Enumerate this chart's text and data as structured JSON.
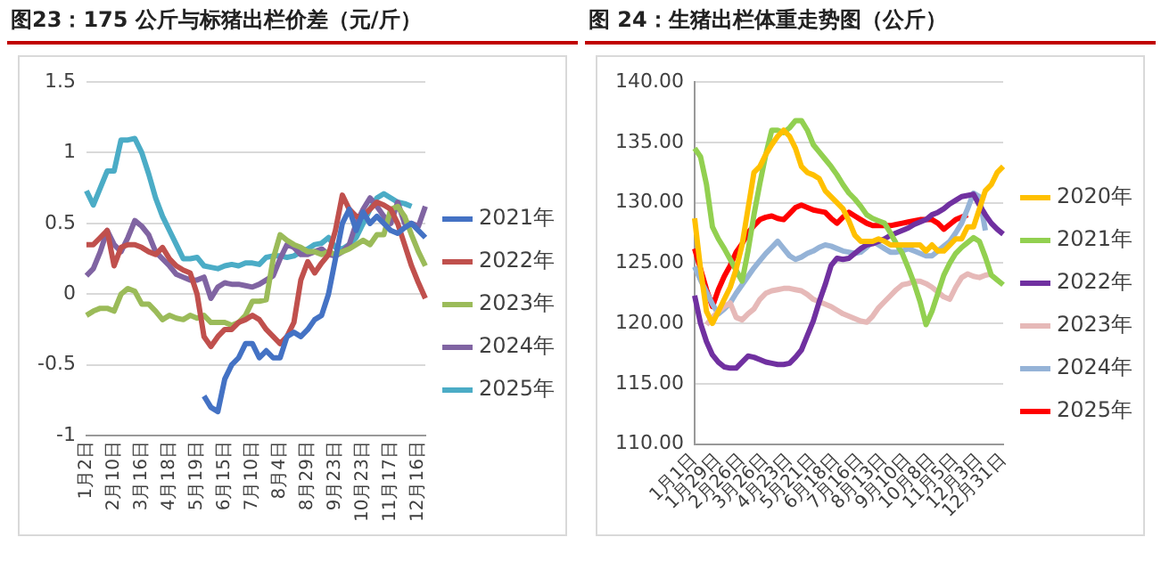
{
  "chart_data": [
    {
      "type": "line",
      "title": "图23：175 公斤与标猪出栏价差（元/斤）",
      "categories": [
        "1月2日",
        null,
        null,
        null,
        "2月10日",
        null,
        null,
        null,
        "3月16日",
        null,
        null,
        null,
        "4月18日",
        null,
        null,
        null,
        "5月19日",
        null,
        null,
        null,
        "6月15日",
        null,
        null,
        null,
        "7月10日",
        null,
        null,
        null,
        "8月4日",
        null,
        null,
        null,
        "8月29日",
        null,
        null,
        null,
        "9月23日",
        null,
        null,
        null,
        "10月23日",
        null,
        null,
        null,
        "11月17日",
        null,
        null,
        null,
        "12月16日",
        null
      ],
      "ylim": [
        -1,
        1.5
      ],
      "yticks": [
        1.5,
        1,
        0.5,
        0,
        -0.5,
        -1
      ],
      "grid": "y",
      "legend": "right",
      "marker": "none",
      "series": [
        {
          "name": "2021年",
          "color": "#4472c4",
          "values": [
            null,
            null,
            null,
            null,
            null,
            null,
            null,
            null,
            null,
            null,
            null,
            null,
            null,
            null,
            null,
            null,
            null,
            -0.72,
            -0.8,
            -0.83,
            -0.6,
            -0.5,
            -0.45,
            -0.35,
            -0.35,
            -0.45,
            -0.4,
            -0.45,
            -0.45,
            -0.3,
            -0.27,
            -0.3,
            -0.25,
            -0.18,
            -0.15,
            0.0,
            0.25,
            0.5,
            0.6,
            0.45,
            0.58,
            0.5,
            0.55,
            0.5,
            0.45,
            0.43,
            0.47,
            0.5,
            0.45,
            0.4
          ]
        },
        {
          "name": "2022年",
          "color": "#c0504d",
          "values": [
            0.35,
            0.35,
            0.4,
            0.45,
            0.2,
            0.33,
            0.35,
            0.35,
            0.33,
            0.3,
            0.28,
            0.33,
            0.25,
            0.2,
            0.17,
            0.15,
            0.0,
            -0.3,
            -0.37,
            -0.3,
            -0.25,
            -0.25,
            -0.2,
            -0.18,
            -0.15,
            -0.18,
            -0.25,
            -0.3,
            -0.35,
            -0.3,
            -0.2,
            0.1,
            0.23,
            0.15,
            0.22,
            0.28,
            0.45,
            0.7,
            0.6,
            0.55,
            0.55,
            0.6,
            0.65,
            0.63,
            0.6,
            0.5,
            0.35,
            0.2,
            0.08,
            -0.03
          ]
        },
        {
          "name": "2023年",
          "color": "#9bbb59",
          "values": [
            -0.15,
            -0.12,
            -0.1,
            -0.1,
            -0.12,
            0.0,
            0.04,
            0.02,
            -0.07,
            -0.07,
            -0.12,
            -0.18,
            -0.15,
            -0.17,
            -0.18,
            -0.15,
            -0.17,
            -0.15,
            -0.2,
            -0.2,
            -0.2,
            -0.22,
            -0.2,
            -0.15,
            -0.05,
            -0.05,
            -0.04,
            0.25,
            0.42,
            0.38,
            0.35,
            0.33,
            0.3,
            0.3,
            0.28,
            0.3,
            0.28,
            0.3,
            0.32,
            0.35,
            0.38,
            0.35,
            0.42,
            0.42,
            0.6,
            0.62,
            0.55,
            0.42,
            0.3,
            0.2
          ]
        },
        {
          "name": "2024年",
          "color": "#8064a2",
          "values": [
            0.13,
            0.18,
            0.3,
            0.45,
            0.35,
            0.3,
            0.4,
            0.52,
            0.48,
            0.42,
            0.3,
            0.25,
            0.2,
            0.14,
            0.12,
            0.1,
            0.1,
            0.12,
            -0.03,
            0.05,
            0.08,
            0.07,
            0.07,
            0.06,
            0.05,
            0.07,
            0.1,
            0.13,
            0.25,
            0.35,
            0.33,
            0.28,
            0.28,
            0.3,
            0.32,
            0.28,
            0.27,
            0.3,
            0.35,
            0.5,
            0.6,
            0.68,
            0.62,
            0.55,
            0.5,
            0.65,
            0.5,
            0.5,
            0.48,
            0.62
          ]
        },
        {
          "name": "2025年",
          "color": "#4bacc6",
          "values": [
            0.73,
            0.63,
            0.75,
            0.87,
            0.87,
            1.09,
            1.09,
            1.1,
            1.0,
            0.85,
            0.68,
            0.55,
            0.45,
            0.35,
            0.25,
            0.25,
            0.26,
            0.2,
            0.19,
            0.18,
            0.2,
            0.21,
            0.2,
            0.22,
            0.22,
            0.21,
            0.26,
            0.27,
            0.27,
            0.26,
            0.27,
            0.3,
            0.32,
            0.35,
            0.36,
            0.4,
            0.33,
            0.32,
            0.35,
            0.4,
            0.5,
            0.6,
            0.68,
            0.71,
            0.68,
            0.65,
            0.64,
            0.62,
            null,
            null
          ]
        }
      ]
    },
    {
      "type": "line",
      "title": "图 24：生猪出栏体重走势图（公斤）",
      "categories": [
        "1月1日",
        null,
        null,
        null,
        "1月29日",
        null,
        null,
        null,
        "2月26日",
        null,
        null,
        null,
        "3月26日",
        null,
        null,
        null,
        "4月23日",
        null,
        null,
        null,
        "5月21日",
        null,
        null,
        null,
        "6月18日",
        null,
        null,
        null,
        "7月16日",
        null,
        null,
        null,
        "8月13日",
        null,
        null,
        null,
        "9月10日",
        null,
        null,
        null,
        "10月8日",
        null,
        null,
        null,
        "11月5日",
        null,
        null,
        null,
        "12月3日",
        null,
        null,
        null,
        "12月31日"
      ],
      "ylim": [
        110,
        140
      ],
      "yticks": [
        {
          "value": 110,
          "label": "110.00"
        },
        {
          "value": 115,
          "label": "115.00"
        },
        {
          "value": 120,
          "label": "120.00"
        },
        {
          "value": 125,
          "label": "125.00"
        },
        {
          "value": 130,
          "label": "130.00"
        },
        {
          "value": 135,
          "label": "135.00"
        },
        {
          "value": 140,
          "label": "140.00"
        }
      ],
      "grid": "y",
      "legend": "right",
      "marker": "none",
      "series": [
        {
          "name": "2020年",
          "color": "#ffc000",
          "values": [
            128.7,
            124.5,
            121,
            120,
            121,
            122,
            123,
            124.5,
            126.5,
            129.5,
            132.5,
            133,
            134,
            134.8,
            135.5,
            136,
            135.5,
            134.5,
            133,
            132.5,
            132.3,
            132,
            131,
            130.5,
            130,
            129.5,
            128.5,
            127.3,
            126.8,
            126.8,
            126.8,
            127,
            126.8,
            126.5,
            126.5,
            126.5,
            126.5,
            126.5,
            126.5,
            126,
            126.5,
            126,
            126,
            126.5,
            127,
            127,
            128,
            128,
            129.5,
            131,
            131.5,
            132.5,
            133
          ]
        },
        {
          "name": "2021年",
          "color": "#92d050",
          "values": [
            134.5,
            133.8,
            131.5,
            128,
            127,
            126.2,
            125.3,
            124.4,
            123.5,
            126,
            129,
            131.6,
            134,
            136,
            136,
            135.8,
            136.2,
            136.8,
            136.8,
            136,
            134.8,
            134.2,
            133.6,
            133,
            132.3,
            131.5,
            130.8,
            130.3,
            129.7,
            129,
            128.7,
            128.5,
            128.3,
            127.5,
            126.6,
            125.8,
            124.6,
            123.3,
            121.8,
            119.9,
            121,
            122.5,
            124,
            125,
            125.8,
            126.3,
            126.7,
            127.1,
            126.8,
            125.5,
            124,
            123.6,
            123.2
          ]
        },
        {
          "name": "2022年",
          "color": "#7030a0",
          "values": [
            122.3,
            120,
            118.5,
            117.4,
            116.8,
            116.4,
            116.3,
            116.3,
            116.8,
            117.3,
            117.2,
            117,
            116.8,
            116.7,
            116.6,
            116.6,
            116.7,
            117.2,
            117.8,
            119,
            120.2,
            121.8,
            123.2,
            124.8,
            125.4,
            125.3,
            125.4,
            125.8,
            126.2,
            126.5,
            126.6,
            126.8,
            127,
            127.3,
            127.5,
            127.7,
            127.9,
            128.2,
            128.4,
            128.6,
            129,
            129.2,
            129.5,
            129.9,
            130.2,
            130.5,
            130.6,
            130.7,
            129.8,
            129,
            128.3,
            127.8,
            127.4
          ]
        },
        {
          "name": "2023年",
          "color": "#e6b9b8",
          "values": [
            null,
            null,
            119.9,
            120.5,
            121,
            121.4,
            121.7,
            120.5,
            120.3,
            120.8,
            121.2,
            122,
            122.5,
            122.7,
            122.8,
            122.9,
            122.9,
            122.8,
            122.7,
            122.4,
            122,
            121.8,
            121.6,
            121.4,
            121.1,
            120.8,
            120.6,
            120.4,
            120.2,
            120.1,
            120.6,
            121.3,
            121.8,
            122.3,
            122.8,
            123.2,
            123.3,
            123.5,
            123.5,
            123.3,
            123,
            122.6,
            122.2,
            122,
            123,
            123.8,
            124.1,
            123.9,
            123.8,
            124,
            124.1,
            null,
            null
          ]
        },
        {
          "name": "2024年",
          "color": "#95b3d7",
          "values": [
            124.7,
            123.6,
            122.6,
            121.6,
            120.8,
            121.2,
            121.7,
            122.5,
            123.2,
            123.9,
            124.6,
            125.2,
            125.8,
            126.3,
            126.8,
            126.2,
            125.6,
            125.3,
            125.5,
            125.8,
            126,
            126.3,
            126.5,
            126.4,
            126.2,
            126,
            125.9,
            125.8,
            125.9,
            126.3,
            126.8,
            126.5,
            126.2,
            125.9,
            125.9,
            126,
            126.2,
            126,
            125.8,
            125.6,
            125.6,
            126,
            126.4,
            126.8,
            127.5,
            128.3,
            129.5,
            130.8,
            130.5,
            127.7,
            null,
            null,
            null
          ]
        },
        {
          "name": "2025年",
          "color": "#ff0000",
          "values": [
            126.2,
            124.5,
            122.8,
            121.4,
            122.8,
            123.9,
            124.8,
            125.9,
            126.6,
            127.5,
            128.1,
            128.6,
            128.8,
            128.9,
            128.7,
            128.6,
            129.1,
            129.6,
            129.8,
            129.6,
            129.4,
            129.3,
            129.2,
            128.7,
            128.3,
            128.8,
            129.2,
            128.9,
            128.6,
            128.3,
            128.1,
            128.1,
            128.1,
            128.1,
            128.2,
            128.3,
            128.4,
            128.5,
            128.6,
            128.6,
            128.6,
            128.3,
            127.8,
            128.2,
            128.6,
            128.8,
            129,
            null,
            null,
            null,
            null,
            null,
            null
          ]
        }
      ]
    }
  ]
}
